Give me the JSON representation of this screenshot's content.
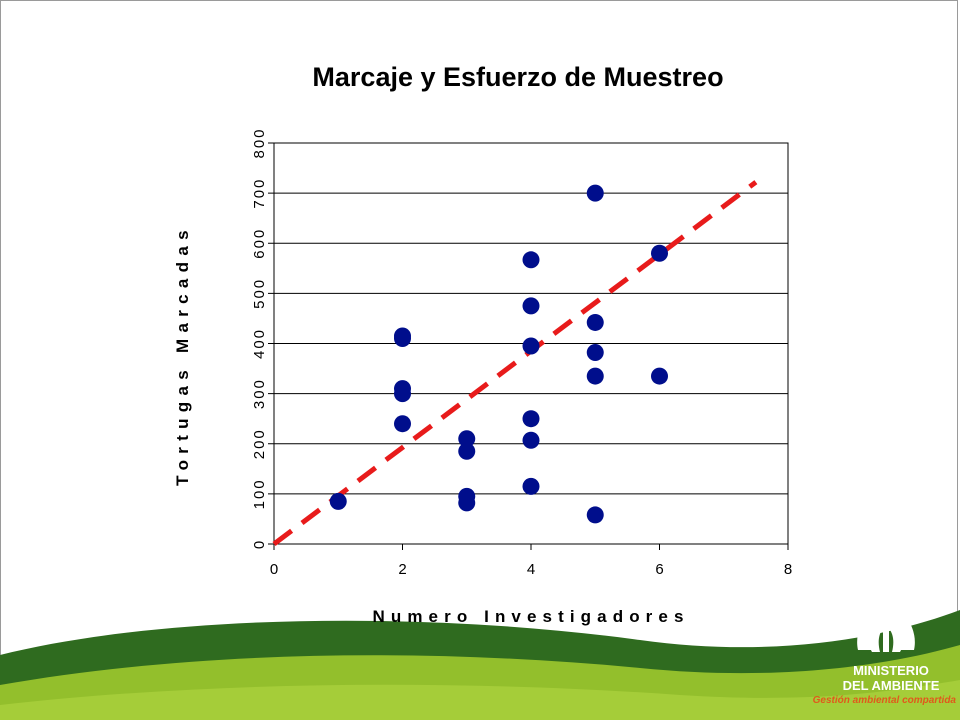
{
  "slide": {
    "title": "Marcaje y Esfuerzo de Muestreo"
  },
  "logo": {
    "line1": "MINISTERIO",
    "line2": "DEL AMBIENTE",
    "tagline": "Gestión ambiental compartida"
  },
  "colors": {
    "points": "#000e8c",
    "trendline": "#e81b1b",
    "banner_dark": "#2f6b1f",
    "banner_light": "#93bf2c",
    "tagline": "#e05a1c"
  },
  "chart_data": {
    "type": "scatter",
    "title": "Marcaje y Esfuerzo de Muestreo",
    "xlabel": "Numero Investigadores",
    "ylabel": "Tortugas Marcadas",
    "xlim": [
      0,
      8
    ],
    "ylim": [
      0,
      800
    ],
    "xticks": [
      "0",
      "2",
      "4",
      "6",
      "8"
    ],
    "yticks": [
      "0",
      "100",
      "200",
      "300",
      "400",
      "500",
      "600",
      "700",
      "800"
    ],
    "grid": "horizontal",
    "legend": "none",
    "points": [
      {
        "x": 1,
        "y": 85
      },
      {
        "x": 2,
        "y": 415
      },
      {
        "x": 2,
        "y": 410
      },
      {
        "x": 2,
        "y": 310
      },
      {
        "x": 2,
        "y": 300
      },
      {
        "x": 2,
        "y": 240
      },
      {
        "x": 3,
        "y": 210
      },
      {
        "x": 3,
        "y": 185
      },
      {
        "x": 3,
        "y": 95
      },
      {
        "x": 3,
        "y": 82
      },
      {
        "x": 4,
        "y": 567
      },
      {
        "x": 4,
        "y": 475
      },
      {
        "x": 4,
        "y": 395
      },
      {
        "x": 4,
        "y": 250
      },
      {
        "x": 4,
        "y": 207
      },
      {
        "x": 4,
        "y": 115
      },
      {
        "x": 5,
        "y": 700
      },
      {
        "x": 5,
        "y": 442
      },
      {
        "x": 5,
        "y": 382
      },
      {
        "x": 5,
        "y": 335
      },
      {
        "x": 5,
        "y": 58
      },
      {
        "x": 6,
        "y": 580
      },
      {
        "x": 6,
        "y": 335
      }
    ],
    "trendline": {
      "style": "dashed",
      "x": [
        0,
        7.5
      ],
      "y": [
        0,
        722
      ]
    }
  }
}
